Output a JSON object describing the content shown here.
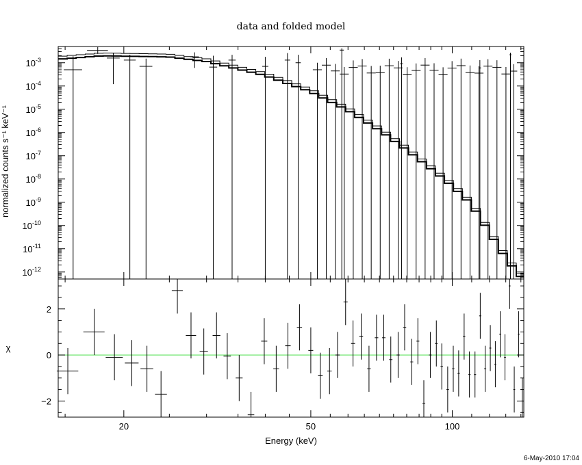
{
  "chart_data": [
    {
      "panel": "spectrum",
      "type": "line",
      "title": "data and folded model",
      "ylabel": "normalized counts s⁻¹ keV⁻¹",
      "xscale": "log",
      "yscale": "log",
      "xlim": [
        14.5,
        142
      ],
      "ylim": [
        5e-13,
        0.005
      ],
      "y_ticks": [
        {
          "mant": "10",
          "exp": "-3"
        },
        {
          "mant": "10",
          "exp": "-4"
        },
        {
          "mant": "10",
          "exp": "-5"
        },
        {
          "mant": "10",
          "exp": "-6"
        },
        {
          "mant": "10",
          "exp": "-7"
        },
        {
          "mant": "10",
          "exp": "-8"
        },
        {
          "mant": "10",
          "exp": "-9"
        },
        {
          "mant": "10",
          "exp": "-10"
        },
        {
          "mant": "10",
          "exp": "-11"
        },
        {
          "mant": "10",
          "exp": "-12"
        }
      ],
      "y_tick_values": [
        0.001,
        0.0001,
        1e-05,
        1e-06,
        1e-07,
        1e-08,
        1e-09,
        1e-10,
        1e-11,
        1e-12
      ],
      "data_points": [
        {
          "x": 15.6,
          "xerr": 0.7,
          "y": 0.0005,
          "lo": 5e-13,
          "hi": 0.0019
        },
        {
          "x": 17.6,
          "xerr": 0.9,
          "y": 0.0034,
          "lo": 0.0024,
          "hi": 0.0047
        },
        {
          "x": 19.0,
          "xerr": 0.6,
          "y": 0.0016,
          "lo": 0.00012,
          "hi": 0.0027
        },
        {
          "x": 20.6,
          "xerr": 0.6,
          "y": 0.0013,
          "lo": 5e-13,
          "hi": 0.0022
        },
        {
          "x": 22.3,
          "xerr": 0.7,
          "y": 0.0007,
          "lo": 5e-13,
          "hi": 0.0015
        },
        {
          "x": 28.3,
          "xerr": 0.6,
          "y": 0.0018,
          "lo": 0.0006,
          "hi": 0.0028
        },
        {
          "x": 31.0,
          "xerr": 0.6,
          "y": 0.00065,
          "lo": 5e-13,
          "hi": 0.002
        },
        {
          "x": 34.0,
          "xerr": 0.6,
          "y": 0.0013,
          "lo": 5e-13,
          "hi": 0.0022
        },
        {
          "x": 40.0,
          "xerr": 0.6,
          "y": 0.0007,
          "lo": 5e-13,
          "hi": 0.0018
        },
        {
          "x": 44.6,
          "xerr": 0.6,
          "y": 0.0013,
          "lo": 5e-13,
          "hi": 0.0026
        },
        {
          "x": 47.0,
          "xerr": 0.6,
          "y": 0.001,
          "lo": 5e-13,
          "hi": 0.0022
        },
        {
          "x": 58.2,
          "xerr": 0.6,
          "y": 0.0035,
          "lo": 5e-13,
          "hi": 0.0042
        },
        {
          "x": 78.0,
          "xerr": 0.6,
          "y": 0.0009,
          "lo": 5e-13,
          "hi": 0.0017
        },
        {
          "x": 114.5,
          "xerr": 0.7,
          "y": 0.0006,
          "lo": 5e-13,
          "hi": 0.0013
        },
        {
          "x": 133.0,
          "xerr": 0.7,
          "y": 0.0022,
          "lo": 5e-13,
          "hi": 0.0027
        }
      ],
      "upper_limit_bins": {
        "x_start": 50.5,
        "x_stop": 137.5,
        "ratio": 1.045,
        "y": 0.0005,
        "hi": 0.001
      },
      "model_step": {
        "x_start": 14.5,
        "x_stop": 142,
        "ratio": 1.045,
        "log10_y_knots": [
          [
            14.5,
            -2.85
          ],
          [
            18.0,
            -2.7
          ],
          [
            25.0,
            -2.75
          ],
          [
            30.0,
            -2.95
          ],
          [
            40.0,
            -3.55
          ],
          [
            50.0,
            -4.25
          ],
          [
            60.0,
            -5.05
          ],
          [
            70.0,
            -5.9
          ],
          [
            80.0,
            -6.75
          ],
          [
            90.0,
            -7.55
          ],
          [
            100.0,
            -8.3
          ],
          [
            110.0,
            -9.1
          ],
          [
            120.0,
            -10.3
          ],
          [
            130.0,
            -11.4
          ],
          [
            142.0,
            -12.4
          ]
        ]
      }
    },
    {
      "panel": "residuals",
      "type": "scatter",
      "xlabel": "Energy (keV)",
      "ylabel": "χ",
      "xscale": "log",
      "xlim": [
        14.5,
        142
      ],
      "ylim": [
        -2.7,
        3.3
      ],
      "x_ticks": [
        {
          "label": "20",
          "value": 20
        },
        {
          "label": "50",
          "value": 50
        },
        {
          "label": "100",
          "value": 100
        }
      ],
      "y_ticks": [
        {
          "label": "2",
          "value": 2
        },
        {
          "label": "0",
          "value": 0
        },
        {
          "label": "−2",
          "value": -2
        }
      ],
      "zero_line_color": "#44dd44",
      "points": [
        {
          "x": 15.2,
          "xerr": 0.8,
          "y": -0.7
        },
        {
          "x": 17.3,
          "xerr": 0.9,
          "y": 1.0
        },
        {
          "x": 19.1,
          "xerr": 0.8,
          "y": -0.1
        },
        {
          "x": 20.8,
          "xerr": 0.7,
          "y": -0.35
        },
        {
          "x": 22.4,
          "xerr": 0.7,
          "y": -0.6
        },
        {
          "x": 24.0,
          "xerr": 0.7,
          "y": -1.7
        },
        {
          "x": 26.0,
          "xerr": 0.7,
          "y": 2.8
        },
        {
          "x": 27.8,
          "xerr": 0.7,
          "y": 0.85
        },
        {
          "x": 29.6,
          "xerr": 0.6,
          "y": 0.15
        },
        {
          "x": 31.5,
          "xerr": 0.6,
          "y": 0.85
        },
        {
          "x": 33.2,
          "xerr": 0.6,
          "y": -0.05
        },
        {
          "x": 35.2,
          "xerr": 0.6,
          "y": -1.0
        },
        {
          "x": 37.3,
          "xerr": 0.6,
          "y": -2.6
        },
        {
          "x": 39.8,
          "xerr": 0.6,
          "y": 0.6
        },
        {
          "x": 42.2,
          "xerr": 0.6,
          "y": -0.6
        },
        {
          "x": 44.7,
          "xerr": 0.6,
          "y": 0.4
        },
        {
          "x": 47.3,
          "xerr": 0.6,
          "y": 1.2
        },
        {
          "x": 50.0,
          "xerr": 0.6,
          "y": 0.2
        },
        {
          "x": 52.4,
          "xerr": 0.6,
          "y": -0.9
        },
        {
          "x": 54.8,
          "xerr": 0.6,
          "y": -0.7
        },
        {
          "x": 57.0,
          "xerr": 0.6,
          "y": 0.0
        },
        {
          "x": 59.3,
          "xerr": 0.6,
          "y": 2.3
        },
        {
          "x": 61.5,
          "xerr": 0.6,
          "y": 0.5
        },
        {
          "x": 64.0,
          "xerr": 0.6,
          "y": 0.8
        },
        {
          "x": 66.5,
          "xerr": 0.6,
          "y": -0.6
        },
        {
          "x": 69.0,
          "xerr": 0.6,
          "y": 0.75
        },
        {
          "x": 71.5,
          "xerr": 0.6,
          "y": 0.75
        },
        {
          "x": 74.0,
          "xerr": 0.6,
          "y": -0.2
        },
        {
          "x": 76.7,
          "xerr": 0.6,
          "y": 0.0
        },
        {
          "x": 79.2,
          "xerr": 0.6,
          "y": 1.2
        },
        {
          "x": 82.0,
          "xerr": 0.6,
          "y": -0.3
        },
        {
          "x": 84.5,
          "xerr": 0.6,
          "y": 0.6
        },
        {
          "x": 87.0,
          "xerr": 0.6,
          "y": -2.1
        },
        {
          "x": 89.8,
          "xerr": 0.6,
          "y": 0.0
        },
        {
          "x": 92.5,
          "xerr": 0.6,
          "y": 0.5
        },
        {
          "x": 95.0,
          "xerr": 0.6,
          "y": -0.5
        },
        {
          "x": 97.8,
          "xerr": 0.6,
          "y": -1.5
        },
        {
          "x": 100.5,
          "xerr": 0.6,
          "y": -0.6
        },
        {
          "x": 103.2,
          "xerr": 0.6,
          "y": -0.8
        },
        {
          "x": 106.0,
          "xerr": 0.6,
          "y": 0.8
        },
        {
          "x": 108.8,
          "xerr": 0.6,
          "y": -0.85
        },
        {
          "x": 111.8,
          "xerr": 0.6,
          "y": -0.85
        },
        {
          "x": 114.7,
          "xerr": 0.6,
          "y": 1.7
        },
        {
          "x": 117.5,
          "xerr": 0.6,
          "y": -0.6
        },
        {
          "x": 120.5,
          "xerr": 0.6,
          "y": 0.3
        },
        {
          "x": 123.5,
          "xerr": 0.6,
          "y": -0.4
        },
        {
          "x": 126.5,
          "xerr": 0.6,
          "y": 0.9
        },
        {
          "x": 129.5,
          "xerr": 0.6,
          "y": -0.1
        },
        {
          "x": 132.5,
          "xerr": 0.6,
          "y": 3.0
        },
        {
          "x": 135.5,
          "xerr": 0.6,
          "y": -1.5
        },
        {
          "x": 138.5,
          "xerr": 0.6,
          "y": 0.9
        },
        {
          "x": 141.0,
          "xerr": 0.6,
          "y": -2.0
        }
      ]
    }
  ],
  "footer": {
    "timestamp": "6-May-2010 17:04"
  }
}
